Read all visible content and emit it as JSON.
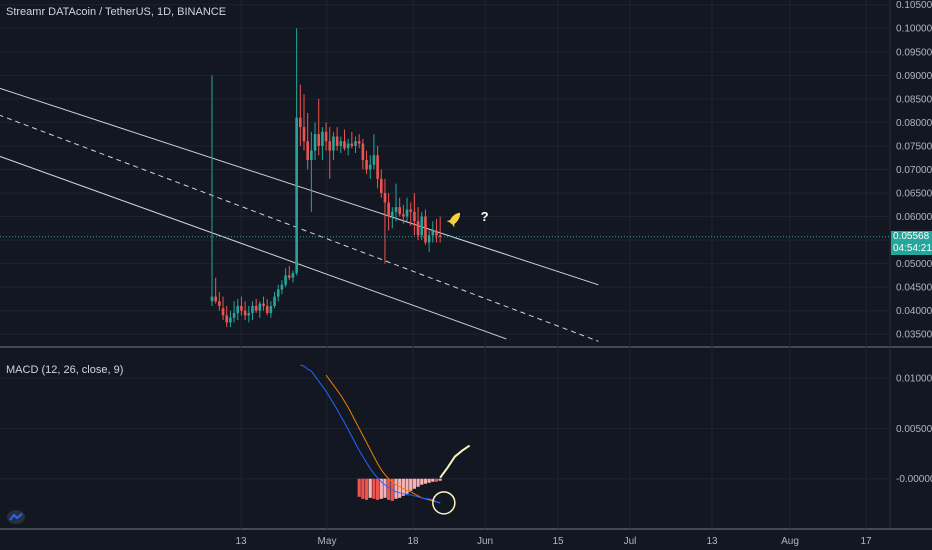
{
  "header": {
    "title": "Streamr DATAcoin / TetherUS, 1D, BINANCE"
  },
  "macd_header": {
    "title": "MACD (12, 26, close, 9)"
  },
  "annotation": {
    "question_mark": "?"
  },
  "badges": {
    "last_price": "0.05568",
    "countdown": "04:54:21"
  },
  "colors": {
    "up": "#26a69a",
    "down": "#ef5350",
    "signal": "#f57c00",
    "macd": "#2962ff",
    "highlight": "#fff3c4",
    "rocket": "#f7d23c"
  },
  "chart_data": [
    {
      "type": "candlestick",
      "title": "Streamr DATAcoin / TetherUS, 1D, BINANCE",
      "ylim": [
        0.0325,
        0.106
      ],
      "y_ticks": [
        0.105,
        0.1,
        0.095,
        0.09,
        0.085,
        0.08,
        0.075,
        0.07,
        0.065,
        0.06,
        0.055,
        0.05,
        0.045,
        0.04,
        0.035
      ],
      "y_tick_labels": [
        "0.10500",
        "0.10000",
        "0.09500",
        "0.09000",
        "0.08500",
        "0.08000",
        "0.07500",
        "0.07000",
        "0.06500",
        "0.06000",
        "0.05500",
        "0.05000",
        "0.04500",
        "0.04000",
        "0.03500"
      ],
      "x_tick_labels": [
        "13",
        "May",
        "18",
        "Jun",
        "15",
        "Jul",
        "13",
        "Aug",
        "17"
      ],
      "ohlc": [
        [
          0.042,
          0.09,
          0.041,
          0.043
        ],
        [
          0.043,
          0.047,
          0.0415,
          0.042
        ],
        [
          0.042,
          0.044,
          0.04,
          0.041
        ],
        [
          0.0405,
          0.043,
          0.038,
          0.039
        ],
        [
          0.039,
          0.041,
          0.0365,
          0.0375
        ],
        [
          0.0375,
          0.04,
          0.0365,
          0.0385
        ],
        [
          0.0385,
          0.042,
          0.0375,
          0.0395
        ],
        [
          0.0395,
          0.0425,
          0.038,
          0.041
        ],
        [
          0.041,
          0.043,
          0.039,
          0.04
        ],
        [
          0.04,
          0.042,
          0.038,
          0.039
        ],
        [
          0.039,
          0.041,
          0.0375,
          0.0395
        ],
        [
          0.0395,
          0.042,
          0.038,
          0.041
        ],
        [
          0.041,
          0.0425,
          0.0395,
          0.04
        ],
        [
          0.04,
          0.042,
          0.0385,
          0.0415
        ],
        [
          0.0415,
          0.043,
          0.04,
          0.041
        ],
        [
          0.041,
          0.0425,
          0.039,
          0.0395
        ],
        [
          0.0395,
          0.042,
          0.0385,
          0.041
        ],
        [
          0.041,
          0.044,
          0.0405,
          0.043
        ],
        [
          0.043,
          0.0455,
          0.042,
          0.0445
        ],
        [
          0.0445,
          0.0465,
          0.0435,
          0.0455
        ],
        [
          0.0455,
          0.049,
          0.045,
          0.0475
        ],
        [
          0.0475,
          0.0495,
          0.0465,
          0.047
        ],
        [
          0.047,
          0.0485,
          0.046,
          0.048
        ],
        [
          0.048,
          0.1,
          0.0475,
          0.081
        ],
        [
          0.081,
          0.088,
          0.075,
          0.079
        ],
        [
          0.079,
          0.086,
          0.074,
          0.076
        ],
        [
          0.076,
          0.082,
          0.07,
          0.072
        ],
        [
          0.072,
          0.078,
          0.061,
          0.074
        ],
        [
          0.074,
          0.08,
          0.072,
          0.0775
        ],
        [
          0.0775,
          0.085,
          0.073,
          0.075
        ],
        [
          0.075,
          0.079,
          0.072,
          0.078
        ],
        [
          0.078,
          0.08,
          0.074,
          0.076
        ],
        [
          0.076,
          0.079,
          0.068,
          0.074
        ],
        [
          0.074,
          0.078,
          0.072,
          0.077
        ],
        [
          0.077,
          0.079,
          0.074,
          0.075
        ],
        [
          0.075,
          0.077,
          0.0735,
          0.076
        ],
        [
          0.076,
          0.0785,
          0.074,
          0.0745
        ],
        [
          0.0745,
          0.0765,
          0.073,
          0.0755
        ],
        [
          0.0755,
          0.078,
          0.0745,
          0.075
        ],
        [
          0.075,
          0.077,
          0.0735,
          0.076
        ],
        [
          0.076,
          0.0775,
          0.0745,
          0.0755
        ],
        [
          0.0755,
          0.0765,
          0.07,
          0.072
        ],
        [
          0.072,
          0.074,
          0.069,
          0.07
        ],
        [
          0.07,
          0.073,
          0.068,
          0.071
        ],
        [
          0.071,
          0.0775,
          0.07,
          0.073
        ],
        [
          0.073,
          0.075,
          0.066,
          0.068
        ],
        [
          0.068,
          0.07,
          0.064,
          0.065
        ],
        [
          0.065,
          0.068,
          0.05,
          0.063
        ],
        [
          0.063,
          0.065,
          0.057,
          0.06
        ],
        [
          0.06,
          0.062,
          0.0575,
          0.061
        ],
        [
          0.061,
          0.067,
          0.059,
          0.062
        ],
        [
          0.062,
          0.064,
          0.06,
          0.0605
        ],
        [
          0.0605,
          0.0625,
          0.0585,
          0.06
        ],
        [
          0.06,
          0.064,
          0.059,
          0.0615
        ],
        [
          0.0615,
          0.063,
          0.058,
          0.061
        ],
        [
          0.061,
          0.065,
          0.056,
          0.059
        ],
        [
          0.059,
          0.062,
          0.055,
          0.056
        ],
        [
          0.056,
          0.061,
          0.055,
          0.06
        ],
        [
          0.06,
          0.0615,
          0.054,
          0.0545
        ],
        [
          0.0545,
          0.057,
          0.0525,
          0.056
        ],
        [
          0.056,
          0.059,
          0.0545,
          0.057
        ],
        [
          0.057,
          0.0595,
          0.0545,
          0.056
        ],
        [
          0.056,
          0.06,
          0.0545,
          0.0557
        ]
      ],
      "channel_lines": [
        {
          "name": "upper",
          "points": [
            [
              0,
              0.102
            ],
            [
              105,
              0.0455
            ]
          ]
        },
        {
          "name": "middle",
          "points": [
            [
              0,
              0.0985
            ],
            [
              105,
              0.0335
            ]
          ]
        },
        {
          "name": "lower",
          "points": [
            [
              0,
              0.089
            ],
            [
              80,
              0.034
            ]
          ]
        }
      ]
    },
    {
      "type": "macd",
      "title": "MACD (12, 26, close, 9)",
      "ylim": [
        -0.0049,
        0.0128
      ],
      "y_ticks": [
        0.01,
        0.005,
        0.0
      ],
      "y_tick_labels": [
        "0.01000",
        "0.00500",
        "-0.00000"
      ],
      "histogram_start_index": 40,
      "histogram": [
        -0.0018,
        -0.002,
        -0.0021,
        -0.0019,
        -0.002,
        -0.0021,
        -0.002,
        -0.0019,
        -0.0021,
        -0.0022,
        -0.002,
        -0.0019,
        -0.0017,
        -0.0015,
        -0.0012,
        -0.001,
        -0.0008,
        -0.0006,
        -0.0005,
        -0.0004,
        -0.0003,
        -0.0003,
        -0.0002
      ],
      "macd_start_index": 24,
      "macd": [
        0.0113,
        0.0112,
        0.0109,
        0.0107,
        0.0102,
        0.0097,
        0.0092,
        0.0087,
        0.0081,
        0.0075,
        0.0069,
        0.0062,
        0.0056,
        0.0049,
        0.0042,
        0.0035,
        0.0028,
        0.0022,
        0.0016,
        0.001,
        0.0005,
        0.0001,
        -0.0003,
        -0.0006,
        -0.0009,
        -0.0011,
        -0.0013,
        -0.0014,
        -0.0015,
        -0.0016,
        -0.0016,
        -0.0017,
        -0.0018,
        -0.0019,
        -0.002,
        -0.002,
        -0.0021,
        -0.0023,
        -0.0024
      ],
      "signal_start_index": 31,
      "signal": [
        0.0103,
        0.0098,
        0.0093,
        0.0088,
        0.0083,
        0.0077,
        0.0071,
        0.0064,
        0.0057,
        0.005,
        0.0043,
        0.0036,
        0.0029,
        0.0022,
        0.0015,
        0.0009,
        0.0004,
        0.0,
        -0.0003,
        -0.0006,
        -0.0008,
        -0.001,
        -0.0012,
        -0.0013,
        -0.0015,
        -0.0017,
        -0.0019,
        -0.002,
        -0.0021,
        -0.0022,
        -0.0023,
        -0.0024
      ],
      "projection": [
        [
          62,
          0.0001
        ],
        [
          64,
          0.0011
        ],
        [
          66,
          0.0022
        ],
        [
          68,
          0.0028
        ],
        [
          70,
          0.0033
        ]
      ],
      "highlight_circle": {
        "x": 63,
        "y": -0.0024
      }
    }
  ]
}
